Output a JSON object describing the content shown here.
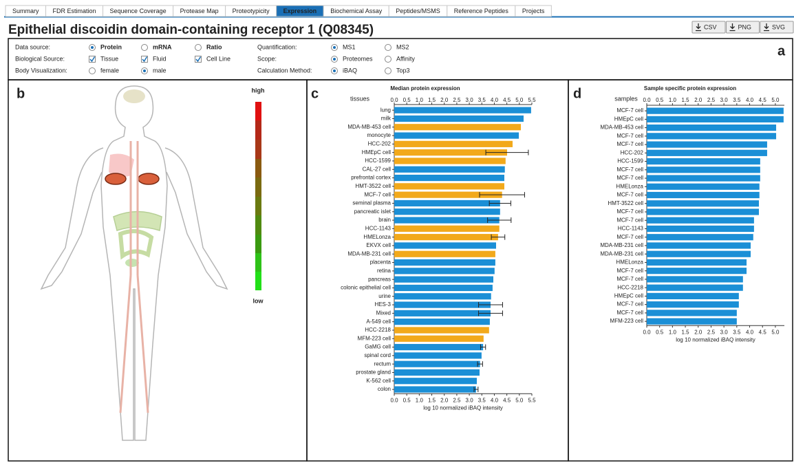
{
  "tabs": [
    {
      "label": "Summary"
    },
    {
      "label": "FDR Estimation"
    },
    {
      "label": "Sequence Coverage"
    },
    {
      "label": "Protease Map"
    },
    {
      "label": "Proteotypicity"
    },
    {
      "label": "Expression",
      "active": true
    },
    {
      "label": "Biochemical Assay"
    },
    {
      "label": "Peptides/MSMS"
    },
    {
      "label": "Reference Peptides"
    },
    {
      "label": "Projects"
    }
  ],
  "title": "Epithelial discoidin domain-containing receptor 1 (Q08345)",
  "buttons": [
    "CSV",
    "PNG",
    "SVG"
  ],
  "panel_labels": [
    "a",
    "b",
    "c",
    "d"
  ],
  "controls": [
    {
      "label": "Data source:",
      "options": [
        {
          "text": "Protein",
          "type": "radio",
          "checked": true
        },
        {
          "text": "mRNA",
          "type": "radio"
        },
        {
          "text": "Ratio",
          "type": "radio"
        }
      ]
    },
    {
      "label": "Biological Source:",
      "options": [
        {
          "text": "Tissue",
          "type": "checkbox",
          "checked": true
        },
        {
          "text": "Fluid",
          "type": "checkbox",
          "checked": true
        },
        {
          "text": "Cell Line",
          "type": "checkbox",
          "checked": true
        }
      ]
    },
    {
      "label": "Body Visualization:",
      "options": [
        {
          "text": "female",
          "type": "radio"
        },
        {
          "text": "male",
          "type": "radio",
          "checked": true
        }
      ]
    },
    {
      "label": "Quantification:",
      "options": [
        {
          "text": "MS1",
          "type": "radio",
          "checked": true
        },
        {
          "text": "MS2",
          "type": "radio"
        }
      ]
    },
    {
      "label": "Scope:",
      "options": [
        {
          "text": "Proteomes",
          "type": "radio",
          "checked": true
        },
        {
          "text": "Affinity",
          "type": "radio"
        }
      ]
    },
    {
      "label": "Calculation Method:",
      "options": [
        {
          "text": "iBAQ",
          "type": "radio",
          "checked": true
        },
        {
          "text": "Top3",
          "type": "radio"
        }
      ]
    }
  ],
  "body_legend": {
    "high": "high",
    "low": "low"
  },
  "chart_data": [
    {
      "type": "hbar",
      "title": "Median protein expression",
      "y_label": "tissues",
      "x_label": "log 10 normalized iBAQ intensity",
      "categories": [
        "lung",
        "milk",
        "MDA-MB-453 cell",
        "monocyte",
        "HCC-202",
        "HMEpC cell",
        "HCC-1599",
        "CAL-27 cell",
        "prefrontal cortex",
        "HMT-3522 cell",
        "MCF-7 cell",
        "seminal plasma",
        "pancreatic islet",
        "brain",
        "HCC-1143",
        "HMELonza",
        "EKVX cell",
        "MDA-MB-231 cell",
        "placenta",
        "retina",
        "pancreas",
        "colonic epithelial cell",
        "urine",
        "HES-3",
        "Mixed",
        "A-549 cell",
        "HCC-2218",
        "MFM-223 cell",
        "GaMG cell",
        "spinal cord",
        "rectum",
        "prostate gland",
        "K-562 cell",
        "colon"
      ],
      "values": [
        5.47,
        5.17,
        5.06,
        4.98,
        4.73,
        4.51,
        4.45,
        4.42,
        4.4,
        4.4,
        4.31,
        4.23,
        4.23,
        4.2,
        4.2,
        4.15,
        4.07,
        4.04,
        4.04,
        4.01,
        3.96,
        3.93,
        3.87,
        3.85,
        3.85,
        3.82,
        3.79,
        3.57,
        3.55,
        3.49,
        3.43,
        3.41,
        3.3,
        3.27
      ],
      "errors": [
        null,
        null,
        null,
        null,
        null,
        0.85,
        null,
        null,
        null,
        null,
        0.9,
        0.43,
        null,
        0.47,
        null,
        0.27,
        null,
        null,
        null,
        null,
        null,
        null,
        null,
        0.48,
        0.48,
        null,
        null,
        null,
        0.1,
        null,
        0.1,
        null,
        null,
        0.08
      ],
      "colors": [
        "#1b8fd6",
        "#1b8fd6",
        "#f2a91b",
        "#1b8fd6",
        "#f2a91b",
        "#f2a91b",
        "#f2a91b",
        "#1b8fd6",
        "#1b8fd6",
        "#f2a91b",
        "#f2a91b",
        "#1b8fd6",
        "#1b8fd6",
        "#1b8fd6",
        "#f2a91b",
        "#f2a91b",
        "#1b8fd6",
        "#f2a91b",
        "#1b8fd6",
        "#1b8fd6",
        "#1b8fd6",
        "#1b8fd6",
        "#1b8fd6",
        "#1b8fd6",
        "#1b8fd6",
        "#1b8fd6",
        "#f2a91b",
        "#f2a91b",
        "#1b8fd6",
        "#1b8fd6",
        "#1b8fd6",
        "#1b8fd6",
        "#1b8fd6",
        "#1b8fd6"
      ],
      "xlim": [
        0,
        5.5
      ],
      "xticks": [
        {
          "value": 0,
          "label": "0.0"
        },
        0.5,
        {
          "value": 1,
          "label": "1.0"
        },
        1.5,
        {
          "value": 2,
          "label": "2.0"
        },
        2.5,
        {
          "value": 3,
          "label": "3.0"
        },
        3.5,
        {
          "value": 4,
          "label": "4.0"
        },
        4.5,
        {
          "value": 5,
          "label": "5.0"
        },
        5.5
      ]
    },
    {
      "type": "hbar",
      "title": "Sample specific protein expression",
      "y_label": "samples",
      "x_label": "log 10 normalized iBAQ intensity",
      "categories": [
        "MCF-7 cell",
        "HMEpC cell",
        "MDA-MB-453 cell",
        "MCF-7 cell",
        "MCF-7 cell",
        "HCC-202",
        "HCC-1599",
        "MCF-7 cell",
        "MCF-7 cell",
        "HMELonza",
        "MCF-7 cell",
        "HMT-3522 cell",
        "MCF-7 cell",
        "MCF-7 cell",
        "HCC-1143",
        "MCF-7 cell",
        "MDA-MB-231 cell",
        "MDA-MB-231 cell",
        "HMELonza",
        "MCF-7 cell",
        "MCF-7 cell",
        "HCC-2218",
        "HMEpC cell",
        "MCF-7 cell",
        "MCF-7 cell",
        "MFM-223 cell"
      ],
      "values": [
        5.32,
        5.32,
        5.03,
        5.03,
        4.68,
        4.68,
        4.41,
        4.41,
        4.41,
        4.38,
        4.38,
        4.36,
        4.36,
        4.17,
        4.17,
        4.14,
        4.04,
        4.04,
        3.88,
        3.88,
        3.74,
        3.74,
        3.58,
        3.58,
        3.5,
        3.5
      ],
      "color": "#1b8fd6",
      "xlim": [
        0,
        5.35
      ],
      "xticks": [
        {
          "value": 0,
          "label": "0.0"
        },
        0.5,
        {
          "value": 1,
          "label": "1.0"
        },
        1.5,
        {
          "value": 2,
          "label": "2.0"
        },
        2.5,
        {
          "value": 3,
          "label": "3.0"
        },
        3.5,
        {
          "value": 4,
          "label": "4.0"
        },
        4.5,
        {
          "value": 5,
          "label": "5.0"
        }
      ]
    }
  ]
}
